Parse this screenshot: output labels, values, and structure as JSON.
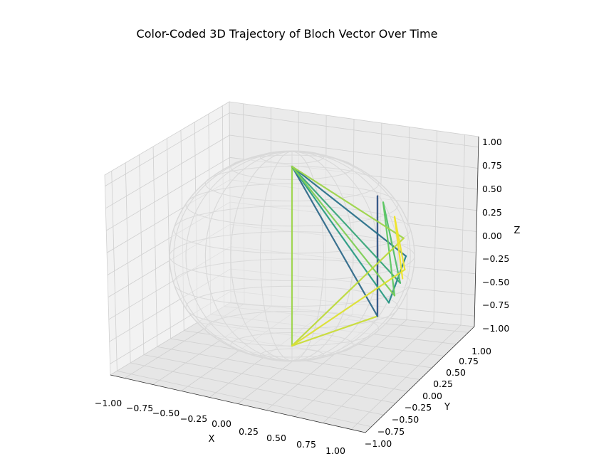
{
  "chart_data": {
    "type": "line",
    "projection": "3d",
    "title": "Color-Coded 3D Trajectory of Bloch Vector Over Time",
    "xlabel": "X",
    "ylabel": "Y",
    "zlabel": "Z",
    "xlim": [
      -1.1,
      1.1
    ],
    "ylim": [
      -1.1,
      1.1
    ],
    "zlim": [
      -1.05,
      1.05
    ],
    "x_ticks": [
      "−1.00",
      "−0.75",
      "−0.50",
      "−0.25",
      "0.00",
      "0.25",
      "0.50",
      "0.75",
      "1.00"
    ],
    "y_ticks": [
      "−1.00",
      "−0.75",
      "−0.50",
      "−0.25",
      "0.00",
      "0.25",
      "0.50",
      "0.75",
      "1.00"
    ],
    "z_ticks": [
      "−1.00",
      "−0.75",
      "−0.50",
      "−0.25",
      "0.00",
      "0.25",
      "0.50",
      "0.75",
      "1.00"
    ],
    "grid": true,
    "colormap": "viridis",
    "sphere": {
      "radius": 1,
      "style": "wireframe",
      "color": "#d9d9d9"
    },
    "trajectory": [
      {
        "x": 0.0,
        "y": 0.0,
        "z": 1.0,
        "t": 0.85
      },
      {
        "x": 0.0,
        "y": 0.0,
        "z": -1.0,
        "t": 0.92
      },
      {
        "x": 0.75,
        "y": 0.0,
        "z": -0.67,
        "t": 0.05
      },
      {
        "x": 0.75,
        "y": 0.0,
        "z": 0.67,
        "t": 0.3
      },
      {
        "x": 0.75,
        "y": 0.0,
        "z": -0.67,
        "t": 0.35
      },
      {
        "x": 0.0,
        "y": 0.0,
        "z": 1.0,
        "t": 0.38
      },
      {
        "x": 1.0,
        "y": 0.0,
        "z": 0.0,
        "t": 0.45
      },
      {
        "x": 0.85,
        "y": 0.0,
        "z": -0.52,
        "t": 0.55
      },
      {
        "x": 0.0,
        "y": 0.0,
        "z": 1.0,
        "t": 0.6
      },
      {
        "x": 0.95,
        "y": 0.0,
        "z": -0.3,
        "t": 0.7
      },
      {
        "x": 0.8,
        "y": 0.0,
        "z": 0.6,
        "t": 0.75
      },
      {
        "x": 0.9,
        "y": 0.0,
        "z": -0.44,
        "t": 0.8
      },
      {
        "x": 0.0,
        "y": 0.0,
        "z": 1.0,
        "t": 0.85
      },
      {
        "x": 0.98,
        "y": 0.0,
        "z": 0.2,
        "t": 0.9
      },
      {
        "x": 0.0,
        "y": 0.0,
        "z": -1.0,
        "t": 0.95
      },
      {
        "x": 0.99,
        "y": 0.0,
        "z": -0.15,
        "t": 0.97
      },
      {
        "x": 0.9,
        "y": 0.0,
        "z": 0.44,
        "t": 0.98
      },
      {
        "x": 0.97,
        "y": 0.0,
        "z": -0.25,
        "t": 1.0
      }
    ]
  }
}
